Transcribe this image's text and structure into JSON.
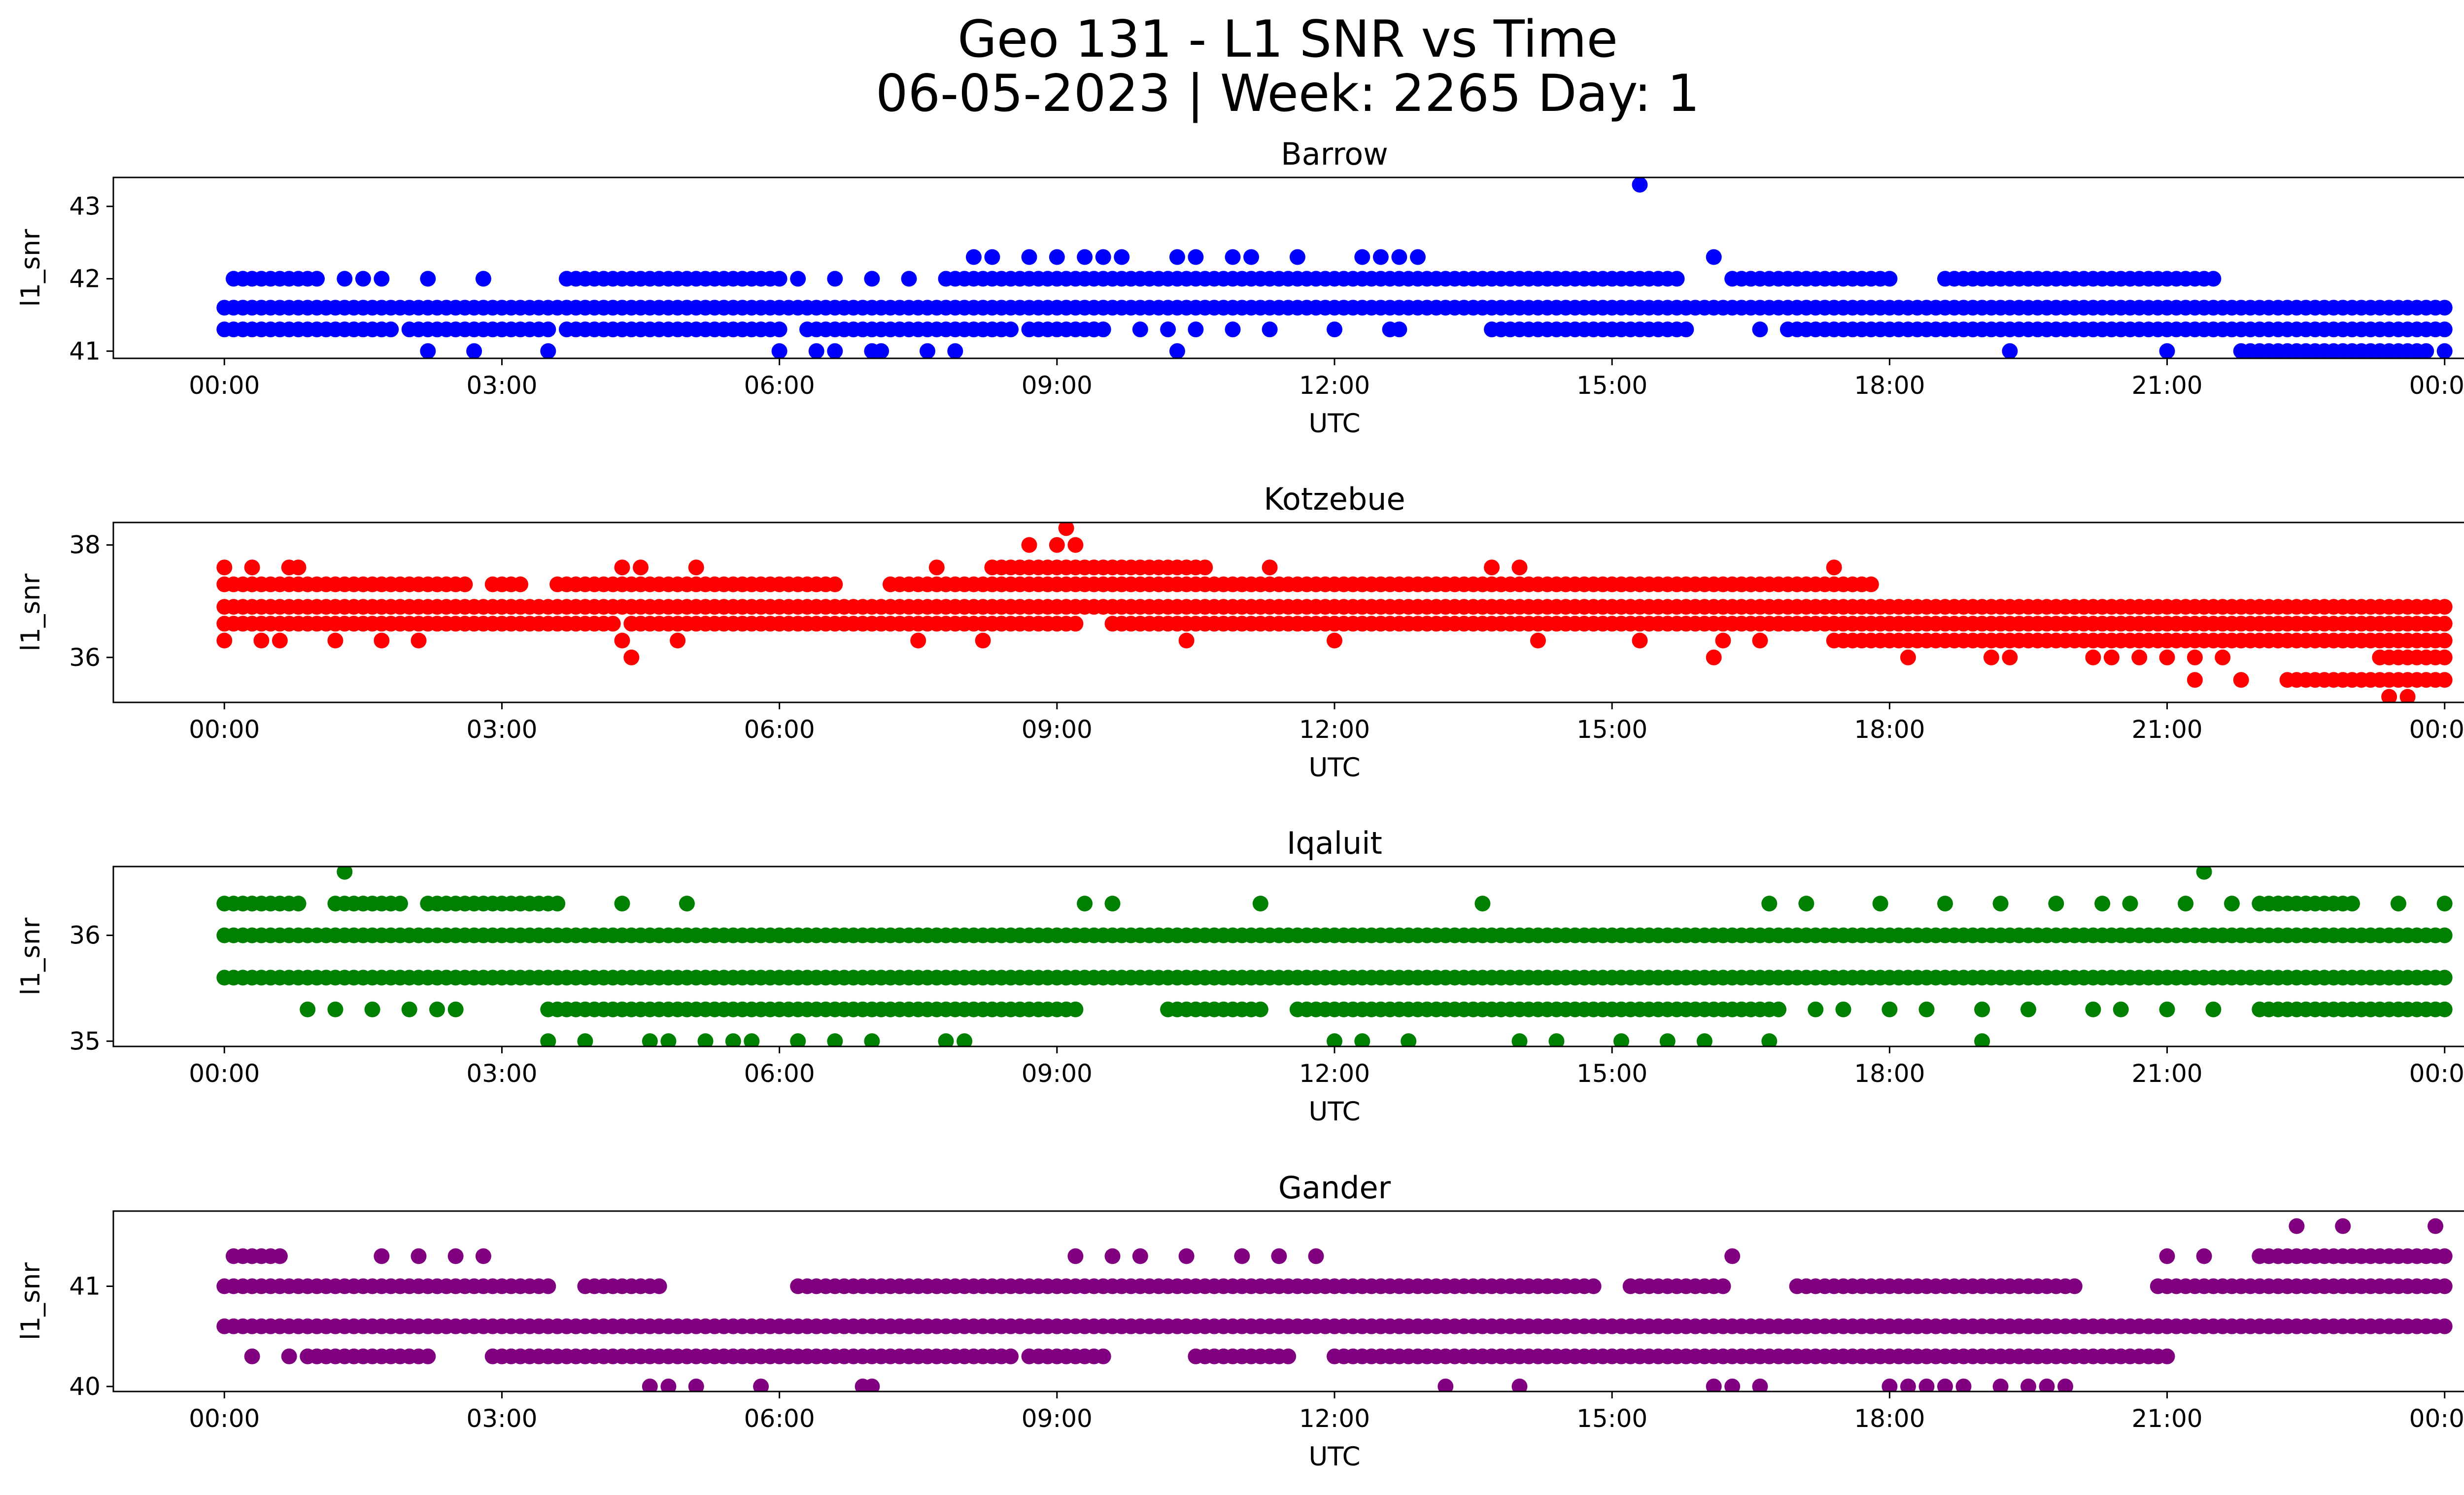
{
  "figure": {
    "title_line1": "Geo 131 - L1 SNR vs Time",
    "title_line2": "06-05-2023 | Week: 2265 Day: 1"
  },
  "chart_data": [
    {
      "type": "scatter",
      "title": "Barrow",
      "xlabel": "UTC",
      "ylabel": "l1_snr",
      "color": "#0000ff",
      "x_unit": "hours",
      "xlim": [
        -1.2,
        25.2
      ],
      "ylim": [
        40.9,
        43.4
      ],
      "xticks": [
        0,
        3,
        6,
        9,
        12,
        15,
        18,
        21,
        24
      ],
      "xtick_labels": [
        "00:00",
        "03:00",
        "06:00",
        "09:00",
        "12:00",
        "15:00",
        "18:00",
        "21:00",
        "00:00"
      ],
      "yticks": [
        41,
        42,
        43
      ],
      "ytick_labels": [
        "41",
        "42",
        "43"
      ],
      "dense_levels": [
        {
          "y": 41.6,
          "ranges": [
            [
              0.0,
              24.0
            ]
          ]
        },
        {
          "y": 41.3,
          "ranges": [
            [
              0.0,
              0.4
            ],
            [
              0.5,
              1.8
            ],
            [
              2.0,
              3.5
            ],
            [
              3.7,
              6.0
            ],
            [
              6.3,
              8.5
            ],
            [
              8.7,
              9.5
            ],
            [
              13.7,
              15.8
            ],
            [
              17.0,
              24.0
            ]
          ]
        },
        {
          "y": 42.0,
          "ranges": [
            [
              0.1,
              0.9
            ],
            [
              3.7,
              6.0
            ],
            [
              7.8,
              15.7
            ],
            [
              16.3,
              18.0
            ],
            [
              18.6,
              21.5
            ]
          ]
        },
        {
          "y": 41.0,
          "ranges": [
            [
              21.9,
              23.8
            ]
          ]
        }
      ],
      "sparse_points": [
        [
          2.2,
          41.0
        ],
        [
          2.7,
          41.0
        ],
        [
          3.5,
          41.0
        ],
        [
          6.0,
          41.0
        ],
        [
          6.4,
          41.0
        ],
        [
          6.6,
          41.0
        ],
        [
          7.0,
          41.0
        ],
        [
          7.1,
          41.0
        ],
        [
          7.6,
          41.0
        ],
        [
          7.9,
          41.0
        ],
        [
          10.3,
          41.0
        ],
        [
          19.3,
          41.0
        ],
        [
          21.0,
          41.0
        ],
        [
          21.8,
          41.0
        ],
        [
          24.0,
          41.0
        ],
        [
          1.0,
          42.0
        ],
        [
          1.3,
          42.0
        ],
        [
          1.5,
          42.0
        ],
        [
          1.7,
          42.0
        ],
        [
          2.2,
          42.0
        ],
        [
          2.8,
          42.0
        ],
        [
          6.2,
          42.0
        ],
        [
          6.6,
          42.0
        ],
        [
          7.0,
          42.0
        ],
        [
          7.4,
          42.0
        ],
        [
          8.1,
          42.3
        ],
        [
          8.3,
          42.3
        ],
        [
          8.7,
          42.3
        ],
        [
          9.0,
          42.3
        ],
        [
          9.3,
          42.3
        ],
        [
          9.5,
          42.3
        ],
        [
          9.7,
          42.3
        ],
        [
          10.3,
          42.3
        ],
        [
          10.5,
          42.3
        ],
        [
          10.9,
          42.3
        ],
        [
          11.1,
          42.3
        ],
        [
          11.6,
          42.3
        ],
        [
          12.3,
          42.3
        ],
        [
          12.5,
          42.3
        ],
        [
          12.7,
          42.3
        ],
        [
          12.9,
          42.3
        ],
        [
          16.1,
          42.3
        ],
        [
          15.3,
          43.3
        ],
        [
          9.4,
          41.3
        ],
        [
          9.9,
          41.3
        ],
        [
          10.2,
          41.3
        ],
        [
          10.5,
          41.3
        ],
        [
          10.9,
          41.3
        ],
        [
          11.3,
          41.3
        ],
        [
          12.0,
          41.3
        ],
        [
          12.6,
          41.3
        ],
        [
          12.7,
          41.3
        ],
        [
          16.6,
          41.3
        ],
        [
          16.9,
          41.3
        ]
      ]
    },
    {
      "type": "scatter",
      "title": "Kotzebue",
      "xlabel": "UTC",
      "ylabel": "l1_snr",
      "color": "#ff0000",
      "x_unit": "hours",
      "xlim": [
        -1.2,
        25.2
      ],
      "ylim": [
        35.2,
        38.4
      ],
      "xticks": [
        0,
        3,
        6,
        9,
        12,
        15,
        18,
        21,
        24
      ],
      "xtick_labels": [
        "00:00",
        "03:00",
        "06:00",
        "09:00",
        "12:00",
        "15:00",
        "18:00",
        "21:00",
        "00:00"
      ],
      "yticks": [
        36,
        38
      ],
      "ytick_labels": [
        "36",
        "38"
      ],
      "dense_levels": [
        {
          "y": 36.9,
          "ranges": [
            [
              0.0,
              24.0
            ]
          ]
        },
        {
          "y": 37.3,
          "ranges": [
            [
              0.0,
              2.6
            ],
            [
              2.9,
              3.2
            ],
            [
              3.6,
              6.6
            ],
            [
              7.2,
              17.8
            ]
          ]
        },
        {
          "y": 36.6,
          "ranges": [
            [
              0.0,
              4.2
            ],
            [
              4.4,
              9.2
            ],
            [
              9.6,
              24.0
            ]
          ]
        },
        {
          "y": 37.6,
          "ranges": [
            [
              8.3,
              10.6
            ]
          ]
        },
        {
          "y": 36.3,
          "ranges": [
            [
              17.4,
              24.0
            ]
          ]
        },
        {
          "y": 36.0,
          "ranges": [
            [
              23.3,
              24.0
            ]
          ]
        },
        {
          "y": 35.6,
          "ranges": [
            [
              22.3,
              24.0
            ]
          ]
        }
      ],
      "sparse_points": [
        [
          0.0,
          37.6
        ],
        [
          0.3,
          37.6
        ],
        [
          0.7,
          37.6
        ],
        [
          0.8,
          37.6
        ],
        [
          4.3,
          37.6
        ],
        [
          4.5,
          37.6
        ],
        [
          5.1,
          37.6
        ],
        [
          7.7,
          37.6
        ],
        [
          11.3,
          37.6
        ],
        [
          13.7,
          37.6
        ],
        [
          14.0,
          37.6
        ],
        [
          17.4,
          37.6
        ],
        [
          8.7,
          38.0
        ],
        [
          9.0,
          38.0
        ],
        [
          9.2,
          38.0
        ],
        [
          9.1,
          38.3
        ],
        [
          0.0,
          36.3
        ],
        [
          0.4,
          36.3
        ],
        [
          0.6,
          36.3
        ],
        [
          1.2,
          36.3
        ],
        [
          1.7,
          36.3
        ],
        [
          2.1,
          36.3
        ],
        [
          4.3,
          36.3
        ],
        [
          4.9,
          36.3
        ],
        [
          7.5,
          36.3
        ],
        [
          8.2,
          36.3
        ],
        [
          10.4,
          36.3
        ],
        [
          12.0,
          36.3
        ],
        [
          14.2,
          36.3
        ],
        [
          15.3,
          36.3
        ],
        [
          16.2,
          36.3
        ],
        [
          16.6,
          36.3
        ],
        [
          4.4,
          36.0
        ],
        [
          16.1,
          36.0
        ],
        [
          18.2,
          36.0
        ],
        [
          19.1,
          36.0
        ],
        [
          19.3,
          36.0
        ],
        [
          20.2,
          36.0
        ],
        [
          20.4,
          36.0
        ],
        [
          20.7,
          36.0
        ],
        [
          21.0,
          36.0
        ],
        [
          21.3,
          36.0
        ],
        [
          21.6,
          36.0
        ],
        [
          21.3,
          35.6
        ],
        [
          21.8,
          35.6
        ],
        [
          23.4,
          35.3
        ],
        [
          23.6,
          35.3
        ]
      ]
    },
    {
      "type": "scatter",
      "title": "Iqaluit",
      "xlabel": "UTC",
      "ylabel": "l1_snr",
      "color": "#008000",
      "x_unit": "hours",
      "xlim": [
        -1.2,
        25.2
      ],
      "ylim": [
        34.95,
        36.65
      ],
      "xticks": [
        0,
        3,
        6,
        9,
        12,
        15,
        18,
        21,
        24
      ],
      "xtick_labels": [
        "00:00",
        "03:00",
        "06:00",
        "09:00",
        "12:00",
        "15:00",
        "18:00",
        "21:00",
        "00:00"
      ],
      "yticks": [
        35,
        36
      ],
      "ytick_labels": [
        "35",
        "36"
      ],
      "dense_levels": [
        {
          "y": 35.6,
          "ranges": [
            [
              0.0,
              24.0
            ]
          ]
        },
        {
          "y": 36.0,
          "ranges": [
            [
              0.0,
              24.0
            ]
          ]
        },
        {
          "y": 36.3,
          "ranges": [
            [
              0.0,
              0.8
            ],
            [
              1.2,
              1.9
            ],
            [
              2.2,
              3.6
            ],
            [
              22.0,
              23.0
            ]
          ]
        },
        {
          "y": 35.3,
          "ranges": [
            [
              3.5,
              9.2
            ],
            [
              10.2,
              11.2
            ],
            [
              11.6,
              16.8
            ],
            [
              22.0,
              24.0
            ]
          ]
        }
      ],
      "sparse_points": [
        [
          1.3,
          36.6
        ],
        [
          21.4,
          36.6
        ],
        [
          4.3,
          36.3
        ],
        [
          5.0,
          36.3
        ],
        [
          9.3,
          36.3
        ],
        [
          9.6,
          36.3
        ],
        [
          11.2,
          36.3
        ],
        [
          13.6,
          36.3
        ],
        [
          16.7,
          36.3
        ],
        [
          17.1,
          36.3
        ],
        [
          17.9,
          36.3
        ],
        [
          18.6,
          36.3
        ],
        [
          19.2,
          36.3
        ],
        [
          19.8,
          36.3
        ],
        [
          20.3,
          36.3
        ],
        [
          20.6,
          36.3
        ],
        [
          21.2,
          36.3
        ],
        [
          21.7,
          36.3
        ],
        [
          22.2,
          36.3
        ],
        [
          22.5,
          36.3
        ],
        [
          23.5,
          36.3
        ],
        [
          24.0,
          36.3
        ],
        [
          0.9,
          35.3
        ],
        [
          1.2,
          35.3
        ],
        [
          1.6,
          35.3
        ],
        [
          2.0,
          35.3
        ],
        [
          2.3,
          35.3
        ],
        [
          2.5,
          35.3
        ],
        [
          17.2,
          35.3
        ],
        [
          17.5,
          35.3
        ],
        [
          18.0,
          35.3
        ],
        [
          18.4,
          35.3
        ],
        [
          19.0,
          35.3
        ],
        [
          19.5,
          35.3
        ],
        [
          20.2,
          35.3
        ],
        [
          20.5,
          35.3
        ],
        [
          21.0,
          35.3
        ],
        [
          21.5,
          35.3
        ],
        [
          3.5,
          35.0
        ],
        [
          3.9,
          35.0
        ],
        [
          4.6,
          35.0
        ],
        [
          4.8,
          35.0
        ],
        [
          5.2,
          35.0
        ],
        [
          5.5,
          35.0
        ],
        [
          5.7,
          35.0
        ],
        [
          6.2,
          35.0
        ],
        [
          6.6,
          35.0
        ],
        [
          7.0,
          35.0
        ],
        [
          7.8,
          35.0
        ],
        [
          8.0,
          35.0
        ],
        [
          12.0,
          35.0
        ],
        [
          12.3,
          35.0
        ],
        [
          12.8,
          35.0
        ],
        [
          14.0,
          35.0
        ],
        [
          14.4,
          35.0
        ],
        [
          15.1,
          35.0
        ],
        [
          15.6,
          35.0
        ],
        [
          16.0,
          35.0
        ],
        [
          16.7,
          35.0
        ],
        [
          19.0,
          35.0
        ]
      ]
    },
    {
      "type": "scatter",
      "title": "Gander",
      "xlabel": "UTC",
      "ylabel": "l1_snr",
      "color": "#800080",
      "x_unit": "hours",
      "xlim": [
        -1.2,
        25.2
      ],
      "ylim": [
        39.95,
        41.75
      ],
      "xticks": [
        0,
        3,
        6,
        9,
        12,
        15,
        18,
        21,
        24
      ],
      "xtick_labels": [
        "00:00",
        "03:00",
        "06:00",
        "09:00",
        "12:00",
        "15:00",
        "18:00",
        "21:00",
        "00:00"
      ],
      "yticks": [
        40,
        41
      ],
      "ytick_labels": [
        "40",
        "41"
      ],
      "dense_levels": [
        {
          "y": 40.6,
          "ranges": [
            [
              0.0,
              24.0
            ]
          ]
        },
        {
          "y": 41.0,
          "ranges": [
            [
              0.0,
              3.5
            ],
            [
              3.9,
              4.7
            ],
            [
              6.2,
              14.8
            ],
            [
              15.2,
              16.2
            ],
            [
              17.0,
              20.0
            ],
            [
              20.9,
              24.0
            ]
          ]
        },
        {
          "y": 40.3,
          "ranges": [
            [
              0.9,
              2.2
            ],
            [
              3.0,
              3.4
            ],
            [
              3.5,
              8.5
            ],
            [
              8.7,
              9.5
            ],
            [
              10.5,
              11.5
            ],
            [
              12.0,
              21.0
            ]
          ]
        },
        {
          "y": 41.3,
          "ranges": [
            [
              0.1,
              0.6
            ],
            [
              22.0,
              24.0
            ]
          ]
        }
      ],
      "sparse_points": [
        [
          0.3,
          40.3
        ],
        [
          0.7,
          40.3
        ],
        [
          2.9,
          40.3
        ],
        [
          1.7,
          41.3
        ],
        [
          2.1,
          41.3
        ],
        [
          2.5,
          41.3
        ],
        [
          2.8,
          41.3
        ],
        [
          9.2,
          41.3
        ],
        [
          9.6,
          41.3
        ],
        [
          9.9,
          41.3
        ],
        [
          10.4,
          41.3
        ],
        [
          11.0,
          41.3
        ],
        [
          11.4,
          41.3
        ],
        [
          11.8,
          41.3
        ],
        [
          16.3,
          41.3
        ],
        [
          21.0,
          41.3
        ],
        [
          21.4,
          41.3
        ],
        [
          22.4,
          41.6
        ],
        [
          22.9,
          41.6
        ],
        [
          23.9,
          41.6
        ],
        [
          4.6,
          40.0
        ],
        [
          4.8,
          40.0
        ],
        [
          5.1,
          40.0
        ],
        [
          5.8,
          40.0
        ],
        [
          6.9,
          40.0
        ],
        [
          7.0,
          40.0
        ],
        [
          13.2,
          40.0
        ],
        [
          14.0,
          40.0
        ],
        [
          16.1,
          40.0
        ],
        [
          16.3,
          40.0
        ],
        [
          16.6,
          40.0
        ],
        [
          18.0,
          40.0
        ],
        [
          18.2,
          40.0
        ],
        [
          18.4,
          40.0
        ],
        [
          18.6,
          40.0
        ],
        [
          18.8,
          40.0
        ],
        [
          19.2,
          40.0
        ],
        [
          19.5,
          40.0
        ],
        [
          19.7,
          40.0
        ],
        [
          19.9,
          40.0
        ]
      ]
    }
  ]
}
